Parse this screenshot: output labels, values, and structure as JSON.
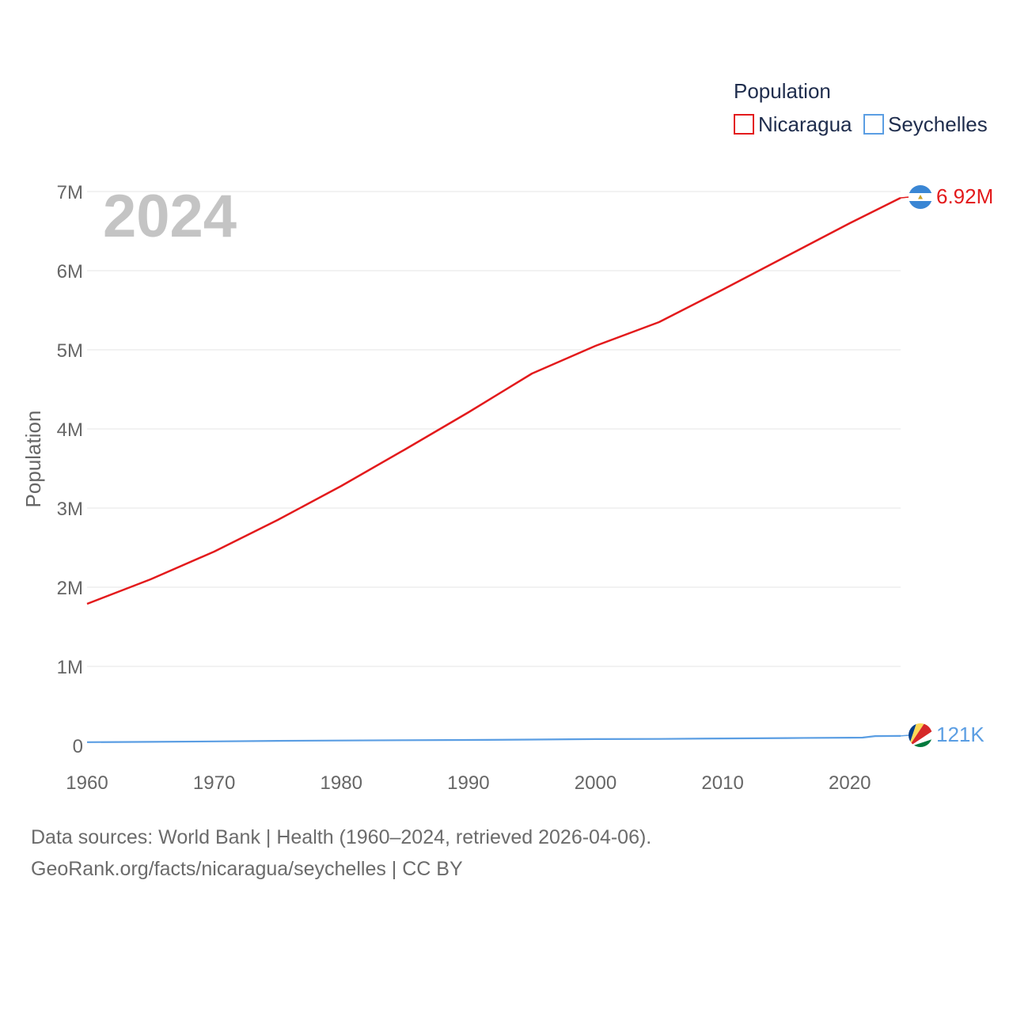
{
  "chart_data": {
    "type": "line",
    "title": "",
    "xlabel": "",
    "ylabel": "Population",
    "xlim": [
      1960,
      2024
    ],
    "ylim": [
      0,
      7000000
    ],
    "x_ticks": [
      1960,
      1970,
      1980,
      1990,
      2000,
      2010,
      2020
    ],
    "y_ticks": [
      0,
      1000000,
      2000000,
      3000000,
      4000000,
      5000000,
      6000000,
      7000000
    ],
    "y_tick_labels": [
      "0",
      "1M",
      "2M",
      "3M",
      "4M",
      "5M",
      "6M",
      "7M"
    ],
    "grid": true,
    "year_watermark": "2024",
    "legend": {
      "title": "Population",
      "placement": "top-right"
    },
    "series": [
      {
        "name": "Nicaragua",
        "color": "#e31a1c",
        "end_label": "6.92M",
        "flag_icon": "nicaragua-flag-icon",
        "x": [
          1960,
          1965,
          1970,
          1975,
          1980,
          1985,
          1990,
          1995,
          2000,
          2005,
          2010,
          2015,
          2020,
          2024
        ],
        "values": [
          1790000,
          2100000,
          2450000,
          2850000,
          3280000,
          3740000,
          4210000,
          4700000,
          5050000,
          5350000,
          5760000,
          6180000,
          6600000,
          6920000
        ]
      },
      {
        "name": "Seychelles",
        "color": "#5b9ee3",
        "end_label": "121K",
        "flag_icon": "seychelles-flag-icon",
        "x": [
          1960,
          1965,
          1970,
          1975,
          1980,
          1985,
          1990,
          1995,
          2000,
          2005,
          2010,
          2015,
          2020,
          2021,
          2022,
          2024
        ],
        "values": [
          42000,
          46000,
          52000,
          59000,
          63000,
          67000,
          70000,
          75000,
          81000,
          83000,
          89000,
          94000,
          99000,
          100000,
          119000,
          121000
        ]
      }
    ]
  },
  "footer": {
    "line1": "Data sources: World Bank | Health (1960–2024, retrieved 2026-04-06).",
    "line2": "GeoRank.org/facts/nicaragua/seychelles | CC BY"
  }
}
